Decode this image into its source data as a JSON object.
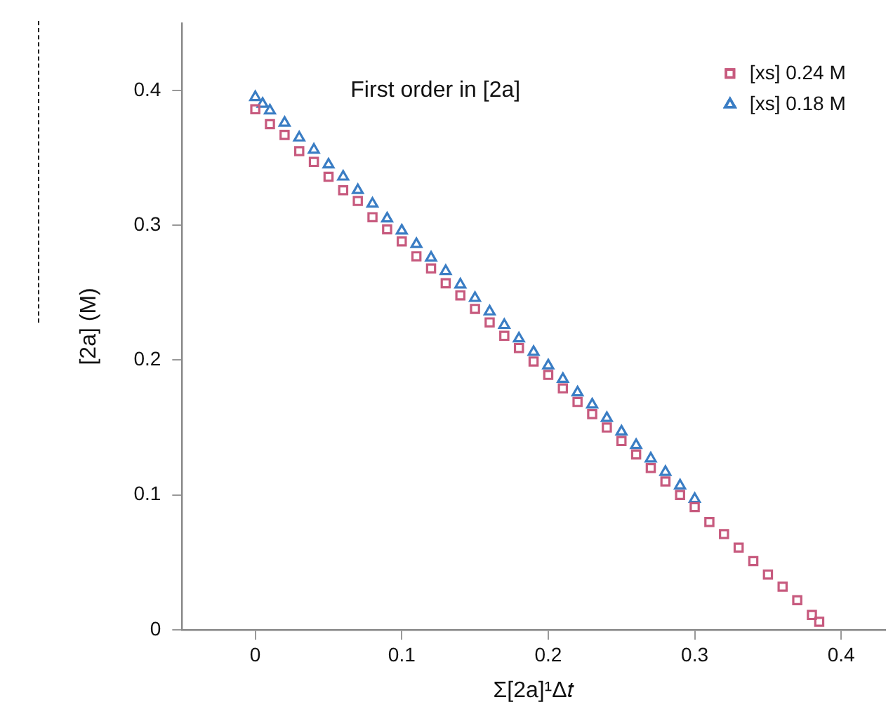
{
  "chart_data": {
    "type": "scatter",
    "annotations": [
      "First order in [2a]"
    ],
    "xlabel": "Σ[2a]¹Δ𝑡",
    "ylabel": "[2a] (M)",
    "xlim": [
      -0.05,
      0.43
    ],
    "ylim": [
      0,
      0.45
    ],
    "xticks": [
      0,
      0.1,
      0.2,
      0.3,
      0.4
    ],
    "yticks": [
      0,
      0.1,
      0.2,
      0.3,
      0.4
    ],
    "grid": false,
    "legend": "top right",
    "series": [
      {
        "name": "[xs] 0.24 M",
        "color": "#c75a7e",
        "marker": "square",
        "x": [
          0,
          0.01,
          0.02,
          0.03,
          0.04,
          0.05,
          0.06,
          0.07,
          0.08,
          0.09,
          0.1,
          0.11,
          0.12,
          0.13,
          0.14,
          0.15,
          0.16,
          0.17,
          0.18,
          0.19,
          0.2,
          0.21,
          0.22,
          0.23,
          0.24,
          0.25,
          0.26,
          0.27,
          0.28,
          0.29,
          0.3,
          0.31,
          0.32,
          0.33,
          0.34,
          0.35,
          0.36,
          0.37,
          0.38,
          0.385
        ],
        "values": [
          0.386,
          0.375,
          0.367,
          0.355,
          0.347,
          0.336,
          0.326,
          0.318,
          0.306,
          0.297,
          0.288,
          0.277,
          0.268,
          0.257,
          0.248,
          0.238,
          0.228,
          0.218,
          0.209,
          0.199,
          0.189,
          0.179,
          0.169,
          0.16,
          0.15,
          0.14,
          0.13,
          0.12,
          0.11,
          0.1,
          0.091,
          0.08,
          0.071,
          0.061,
          0.051,
          0.041,
          0.032,
          0.022,
          0.011,
          0.006
        ]
      },
      {
        "name": "[xs] 0.18 M",
        "color": "#3a7dc4",
        "marker": "triangle",
        "x": [
          0,
          0.005,
          0.01,
          0.02,
          0.03,
          0.04,
          0.05,
          0.06,
          0.07,
          0.08,
          0.09,
          0.1,
          0.11,
          0.12,
          0.13,
          0.14,
          0.15,
          0.16,
          0.17,
          0.18,
          0.19,
          0.2,
          0.21,
          0.22,
          0.23,
          0.24,
          0.25,
          0.26,
          0.27,
          0.28,
          0.29,
          0.3
        ],
        "values": [
          0.395,
          0.39,
          0.385,
          0.376,
          0.365,
          0.356,
          0.345,
          0.336,
          0.326,
          0.316,
          0.305,
          0.296,
          0.286,
          0.276,
          0.266,
          0.256,
          0.246,
          0.236,
          0.226,
          0.216,
          0.206,
          0.196,
          0.186,
          0.176,
          0.167,
          0.157,
          0.147,
          0.137,
          0.127,
          0.117,
          0.107,
          0.097
        ]
      }
    ]
  }
}
